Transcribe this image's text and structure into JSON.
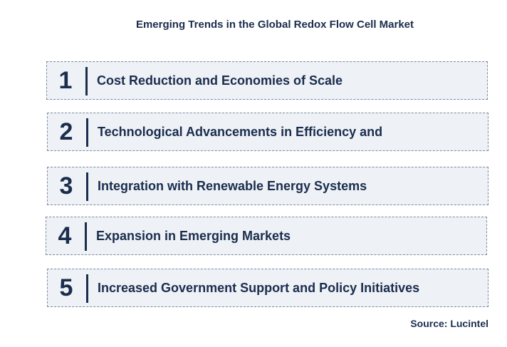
{
  "title": "Emerging Trends in the Global Redox Flow Cell Market",
  "trends": [
    {
      "number": "1",
      "label": "Cost Reduction and Economies of Scale"
    },
    {
      "number": "2",
      "label": "Technological Advancements in Efficiency and"
    },
    {
      "number": "3",
      "label": "Integration with Renewable Energy Systems"
    },
    {
      "number": "4",
      "label": "Expansion in Emerging Markets"
    },
    {
      "number": "5",
      "label": "Increased Government Support and Policy Initiatives"
    }
  ],
  "source": "Source: Lucintel"
}
